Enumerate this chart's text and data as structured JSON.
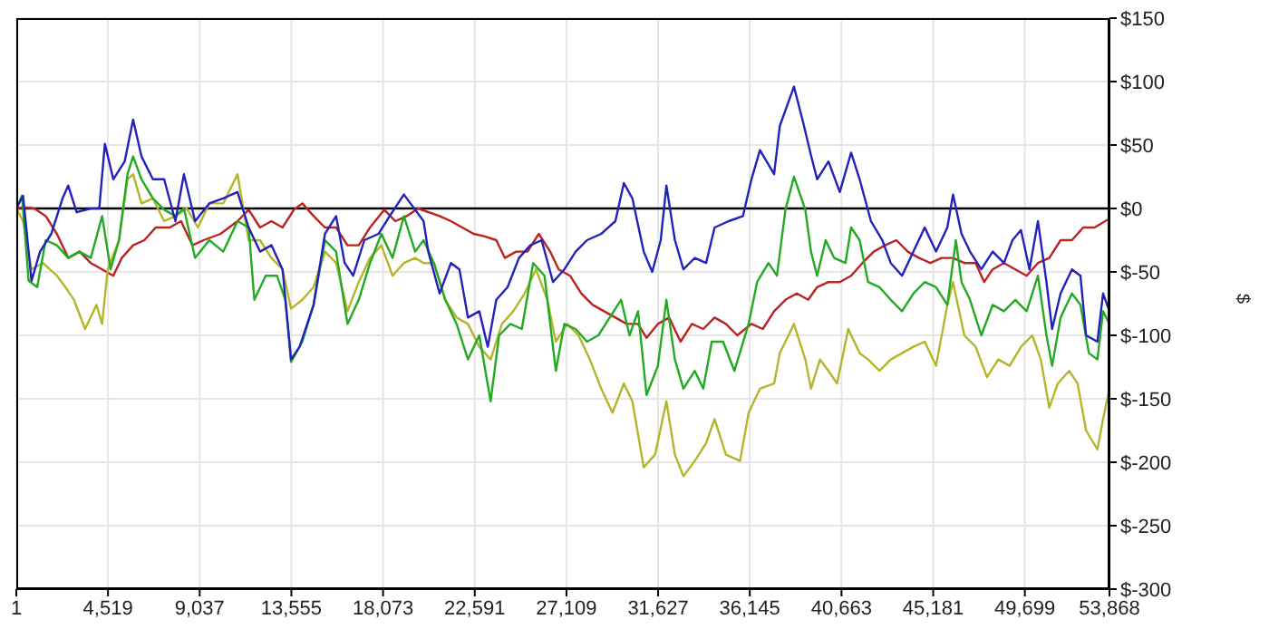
{
  "chart_data": {
    "type": "line",
    "ylabel": "$",
    "xlim": [
      1,
      53868
    ],
    "ylim": [
      -300,
      150
    ],
    "xticks": [
      1,
      {
        "value": 4519,
        "label": "4,519"
      },
      {
        "value": 9037,
        "label": "9,037"
      },
      {
        "value": 13555,
        "label": "13,555"
      },
      {
        "value": 18073,
        "label": "18,073"
      },
      {
        "value": 22591,
        "label": "22,591"
      },
      {
        "value": 27109,
        "label": "27,109"
      },
      {
        "value": 31627,
        "label": "31,627"
      },
      {
        "value": 36145,
        "label": "36,145"
      },
      {
        "value": 40663,
        "label": "40,663"
      },
      {
        "value": 45181,
        "label": "45,181"
      },
      {
        "value": 49699,
        "label": "49,699"
      },
      {
        "value": 53868,
        "label": "53,868"
      }
    ],
    "yticks": [
      {
        "value": 150,
        "label": "$150"
      },
      {
        "value": 100,
        "label": "$100"
      },
      {
        "value": 50,
        "label": "$50"
      },
      {
        "value": 0,
        "label": "$0"
      },
      {
        "value": -50,
        "label": "$-50"
      },
      {
        "value": -100,
        "label": "$-100"
      },
      {
        "value": -150,
        "label": "$-150"
      },
      {
        "value": -200,
        "label": "$-200"
      },
      {
        "value": -250,
        "label": "$-250"
      },
      {
        "value": -300,
        "label": "$-300"
      }
    ],
    "grid": true,
    "ref_lines": [
      {
        "axis": "y",
        "value": 0,
        "color": "#000000"
      }
    ],
    "series": [
      {
        "color": "#bb2222",
        "x": [
          1,
          335,
          890,
          1450,
          2000,
          2560,
          3115,
          3670,
          4230,
          4780,
          5200,
          5755,
          6310,
          6870,
          7560,
          8120,
          8675,
          9230,
          10065,
          10900,
          11450,
          12010,
          12570,
          13120,
          13680,
          14095,
          14650,
          15210,
          15760,
          16320,
          16875,
          17430,
          18130,
          18680,
          19240,
          19795,
          20859,
          21418,
          21976,
          22535,
          23094,
          23653,
          24072,
          24631,
          25189,
          25748,
          26307,
          26726,
          27285,
          27844,
          28403,
          28962,
          29520,
          30079,
          30638,
          31057,
          31616,
          32174,
          32733,
          33292,
          33851,
          34410,
          34968,
          35527,
          36226,
          36785,
          37343,
          37902,
          38461,
          39020,
          39463,
          40021,
          40579,
          41137,
          41695,
          42253,
          42811,
          43369,
          43927,
          44485,
          45043,
          45601,
          46159,
          46717,
          47275,
          47694,
          48112,
          48670,
          49228,
          49786,
          50344,
          50902,
          51460,
          52018,
          52576,
          53134,
          53868
        ],
        "values": [
          0,
          1,
          0,
          -6,
          -20,
          -39,
          -34,
          -43,
          -48,
          -53,
          -39,
          -29,
          -25,
          -15,
          -15,
          -10,
          -29,
          -25,
          -20,
          -10,
          -1,
          -15,
          -10,
          -15,
          -1,
          4,
          -6,
          -15,
          -15,
          -29,
          -29,
          -15,
          -1,
          -10,
          -6,
          0,
          -6,
          -10,
          -15,
          -20,
          -22,
          -25,
          -39,
          -34,
          -34,
          -20,
          -34,
          -48,
          -53,
          -67,
          -76,
          -81,
          -86,
          -91,
          -91,
          -102,
          -91,
          -86,
          -105,
          -91,
          -95,
          -86,
          -91,
          -100,
          -91,
          -95,
          -81,
          -72,
          -67,
          -72,
          -62,
          -58,
          -58,
          -53,
          -43,
          -34,
          -29,
          -25,
          -34,
          -39,
          -43,
          -39,
          -39,
          -43,
          -43,
          -58,
          -48,
          -43,
          -48,
          -53,
          -43,
          -39,
          -25,
          -25,
          -15,
          -15,
          -8
        ]
      },
      {
        "color": "#b5b52a",
        "x": [
          1,
          335,
          750,
          1310,
          2000,
          2420,
          2840,
          3390,
          3950,
          4230,
          4505,
          5060,
          5480,
          5755,
          6170,
          6730,
          7285,
          7840,
          8400,
          8950,
          9510,
          10200,
          10900,
          11450,
          12010,
          12570,
          13120,
          13540,
          14095,
          14650,
          15210,
          15760,
          16320,
          16875,
          17430,
          17990,
          18540,
          19100,
          19655,
          20070,
          20579,
          21138,
          21697,
          22256,
          22815,
          23373,
          23932,
          24491,
          25050,
          25608,
          26167,
          26586,
          27145,
          27704,
          28263,
          28822,
          29381,
          29939,
          30358,
          30917,
          31476,
          32035,
          32454,
          32873,
          33432,
          33991,
          34410,
          34968,
          35667,
          36086,
          36645,
          37343,
          37623,
          38321,
          38880,
          39159,
          39603,
          40021,
          40440,
          40998,
          41556,
          41974,
          42532,
          43090,
          43648,
          44206,
          44764,
          45322,
          45880,
          46159,
          46717,
          47275,
          47833,
          48391,
          48949,
          49507,
          50065,
          50484,
          50902,
          51320,
          51879,
          52297,
          52716,
          53274,
          53553,
          53868
        ],
        "values": [
          0,
          -10,
          -48,
          -43,
          -53,
          -62,
          -72,
          -95,
          -76,
          -91,
          -48,
          -25,
          23,
          27,
          4,
          8,
          -10,
          -6,
          0,
          -15,
          4,
          4,
          27,
          -25,
          -25,
          -39,
          -48,
          -79,
          -72,
          -62,
          -34,
          -43,
          -81,
          -58,
          -39,
          -29,
          -53,
          -43,
          -39,
          -43,
          -43,
          -72,
          -86,
          -91,
          -109,
          -119,
          -91,
          -81,
          -67,
          -48,
          -72,
          -105,
          -91,
          -100,
          -119,
          -142,
          -161,
          -138,
          -152,
          -204,
          -194,
          -152,
          -194,
          -211,
          -199,
          -185,
          -166,
          -194,
          -199,
          -161,
          -142,
          -138,
          -114,
          -91,
          -119,
          -142,
          -119,
          -128,
          -138,
          -95,
          -114,
          -119,
          -128,
          -119,
          -114,
          -109,
          -105,
          -124,
          -76,
          -58,
          -100,
          -109,
          -133,
          -119,
          -124,
          -109,
          -100,
          -119,
          -157,
          -138,
          -128,
          -138,
          -175,
          -190,
          -166,
          -142
        ]
      },
      {
        "color": "#22aa22",
        "x": [
          1,
          280,
          610,
          1030,
          1450,
          2000,
          2560,
          3115,
          3670,
          4230,
          4645,
          5060,
          5480,
          5755,
          6170,
          6730,
          7285,
          7840,
          8260,
          8810,
          9510,
          10200,
          10900,
          11450,
          11730,
          12290,
          12845,
          13260,
          13540,
          14095,
          14650,
          15210,
          15760,
          16320,
          16875,
          17430,
          17990,
          18540,
          19100,
          19655,
          20070,
          20579,
          21138,
          21697,
          22256,
          22815,
          23373,
          23792,
          24351,
          24910,
          25469,
          26028,
          26586,
          27005,
          27564,
          28123,
          28682,
          29241,
          29800,
          30219,
          30638,
          31057,
          31616,
          32035,
          32454,
          32873,
          33432,
          33851,
          34270,
          34829,
          35387,
          36086,
          36505,
          37064,
          37483,
          37902,
          38321,
          38880,
          39159,
          39463,
          39882,
          40300,
          40858,
          41137,
          41556,
          41974,
          42532,
          43090,
          43648,
          44206,
          44764,
          45322,
          45880,
          46299,
          46578,
          46996,
          47554,
          48112,
          48670,
          49228,
          49786,
          50344,
          50763,
          51042,
          51460,
          52018,
          52437,
          52855,
          53274,
          53553,
          53868
        ],
        "values": [
          0,
          10,
          -57,
          -62,
          -25,
          -29,
          -39,
          -34,
          -39,
          -6,
          -48,
          -25,
          27,
          41,
          23,
          8,
          -1,
          -6,
          0,
          -39,
          -25,
          -34,
          -10,
          -15,
          -72,
          -53,
          -53,
          -72,
          -121,
          -105,
          -76,
          -25,
          -34,
          -91,
          -72,
          -43,
          -20,
          -39,
          -6,
          -34,
          -25,
          -43,
          -72,
          -91,
          -119,
          -100,
          -152,
          -100,
          -91,
          -95,
          -43,
          -53,
          -128,
          -91,
          -95,
          -105,
          -100,
          -86,
          -72,
          -100,
          -81,
          -147,
          -124,
          -72,
          -119,
          -142,
          -128,
          -142,
          -105,
          -105,
          -128,
          -91,
          -58,
          -43,
          -53,
          -1,
          25,
          -1,
          -34,
          -53,
          -25,
          -39,
          -43,
          -15,
          -25,
          -58,
          -62,
          -72,
          -81,
          -67,
          -58,
          -62,
          -76,
          -25,
          -58,
          -72,
          -100,
          -76,
          -81,
          -72,
          -81,
          -53,
          -100,
          -124,
          -86,
          -67,
          -76,
          -114,
          -119,
          -81,
          -91
        ]
      },
      {
        "color": "#2222bb",
        "x": [
          1,
          335,
          750,
          1170,
          1725,
          2280,
          2560,
          2975,
          3670,
          4090,
          4365,
          4780,
          5340,
          5755,
          6170,
          6730,
          7285,
          7840,
          8260,
          8810,
          9510,
          10200,
          10900,
          11450,
          12010,
          12570,
          13120,
          13540,
          13960,
          14650,
          15210,
          15760,
          16180,
          16600,
          17150,
          17850,
          18400,
          19100,
          19655,
          20070,
          20300,
          20859,
          21418,
          21837,
          22256,
          22815,
          23234,
          23653,
          24211,
          24770,
          25329,
          25888,
          26447,
          27005,
          27564,
          28123,
          28822,
          29520,
          29939,
          30358,
          30917,
          31336,
          31755,
          32035,
          32454,
          32873,
          33432,
          33991,
          34410,
          35108,
          35807,
          36226,
          36645,
          37343,
          37623,
          38321,
          38740,
          39159,
          39463,
          40021,
          40579,
          41137,
          41556,
          42114,
          42672,
          43090,
          43648,
          44206,
          44764,
          45322,
          45880,
          46159,
          46578,
          46996,
          47554,
          48112,
          48670,
          49089,
          49507,
          49926,
          50344,
          50763,
          51042,
          51460,
          52018,
          52437,
          52716,
          53274,
          53553,
          53868
        ],
        "values": [
          0,
          10,
          -57,
          -34,
          -20,
          8,
          18,
          -3,
          0,
          0,
          51,
          23,
          37,
          70,
          41,
          23,
          23,
          -10,
          27,
          -10,
          4,
          8,
          13,
          -15,
          -34,
          -29,
          -48,
          -119,
          -109,
          -76,
          -20,
          -6,
          -43,
          -53,
          -25,
          -20,
          -6,
          11,
          -1,
          -10,
          -34,
          -67,
          -43,
          -48,
          -86,
          -81,
          -109,
          -72,
          -62,
          -39,
          -29,
          -25,
          -58,
          -48,
          -34,
          -25,
          -20,
          -10,
          20,
          8,
          -34,
          -50,
          -25,
          18,
          -25,
          -48,
          -39,
          -43,
          -15,
          -10,
          -6,
          23,
          46,
          27,
          65,
          96,
          70,
          42,
          23,
          37,
          13,
          44,
          23,
          -10,
          -25,
          -43,
          -53,
          -34,
          -15,
          -34,
          -15,
          11,
          -20,
          -34,
          -48,
          -34,
          -43,
          -25,
          -17,
          -48,
          -10,
          -58,
          -95,
          -67,
          -48,
          -53,
          -100,
          -105,
          -67,
          -81
        ]
      }
    ]
  }
}
